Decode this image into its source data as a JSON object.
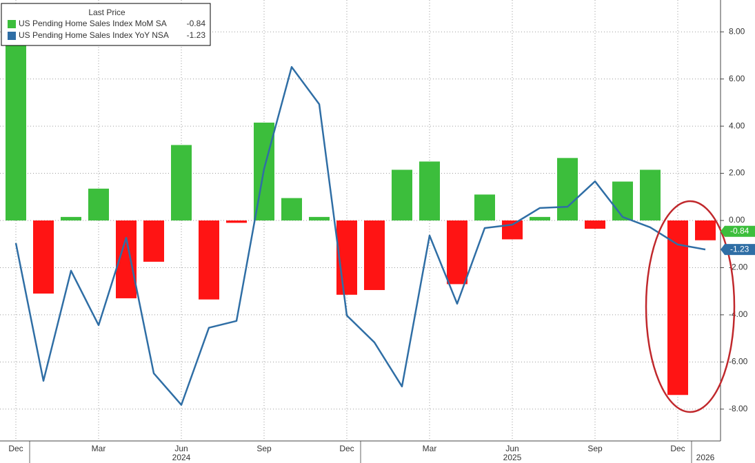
{
  "chart_data": {
    "type": "bar_line",
    "legend_title": "Last Price",
    "categories": [
      "Dec",
      null,
      null,
      "Mar",
      null,
      null,
      "Jun",
      null,
      null,
      "Sep",
      null,
      null,
      "Dec",
      null,
      null,
      "Mar",
      null,
      null,
      "Jun",
      null,
      null,
      "Sep",
      null,
      null,
      "Dec",
      null
    ],
    "year_labels": [
      {
        "text": "2024",
        "at": 6
      },
      {
        "text": "2025",
        "at": 18
      },
      {
        "text": "2026",
        "at": 25
      }
    ],
    "series": [
      {
        "name": "US Pending Home Sales Index MoM SA",
        "last_price": "-0.84",
        "type": "bar",
        "color": "#3cbe3c",
        "negative_color": "#ff1414",
        "values": [
          8.3,
          -3.1,
          0.15,
          1.35,
          -3.3,
          -1.75,
          3.2,
          -3.35,
          -0.1,
          4.15,
          0.95,
          0.15,
          -3.15,
          -2.95,
          2.15,
          2.5,
          -2.7,
          1.1,
          -0.8,
          0.15,
          2.65,
          -0.35,
          1.65,
          2.15,
          -7.4,
          -0.84
        ]
      },
      {
        "name": "US Pending Home Sales Index YoY NSA",
        "last_price": "-1.23",
        "type": "line",
        "color": "#2f6ea5",
        "values": [
          -0.96,
          -6.8,
          -2.13,
          -4.44,
          -0.73,
          -6.48,
          -7.82,
          -4.55,
          -4.26,
          2.19,
          6.51,
          4.93,
          -4.03,
          -5.17,
          -7.04,
          -0.64,
          -3.53,
          -0.32,
          -0.18,
          0.53,
          0.58,
          1.66,
          0.15,
          -0.29,
          -1.02,
          -1.23
        ]
      }
    ],
    "ylim": [
      -9.35,
      9.35
    ],
    "yticks": [
      {
        "value": 8,
        "label": "8.00"
      },
      {
        "value": 6,
        "label": "6.00"
      },
      {
        "value": 4,
        "label": "4.00"
      },
      {
        "value": 2,
        "label": "2.00"
      },
      {
        "value": 0,
        "label": "0.00"
      },
      {
        "value": -2,
        "label": "-2.00"
      },
      {
        "value": -4,
        "label": "-4.00"
      },
      {
        "value": -6,
        "label": "-6.00"
      },
      {
        "value": -8,
        "label": "-8.00"
      }
    ],
    "grid": true
  }
}
